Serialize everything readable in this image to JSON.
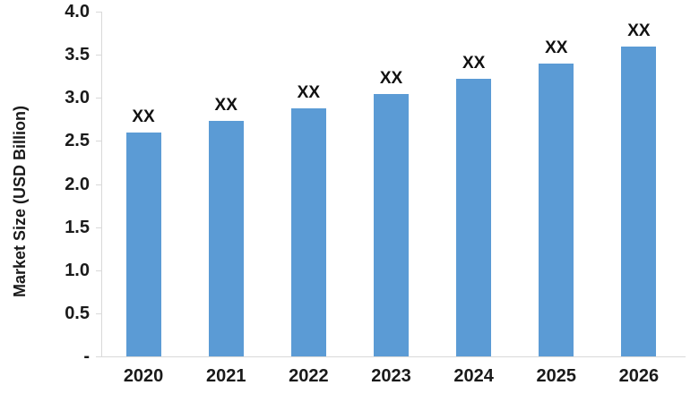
{
  "chart_data": {
    "type": "bar",
    "title": "",
    "xlabel": "",
    "ylabel": "Market Size (USD Billion)",
    "categories": [
      "2020",
      "2021",
      "2022",
      "2023",
      "2024",
      "2025",
      "2026"
    ],
    "values": [
      2.6,
      2.73,
      2.88,
      3.04,
      3.22,
      3.4,
      3.6
    ],
    "bar_labels": [
      "XX",
      "XX",
      "XX",
      "XX",
      "XX",
      "XX",
      "XX"
    ],
    "ylim": [
      0,
      4.0
    ],
    "ytick_step": 0.5,
    "ytick_labels": [
      "4.0",
      "3.5",
      "3.0",
      "2.5",
      "2.0",
      "1.5",
      "1.0",
      "0.5",
      "-"
    ],
    "grid": false,
    "legend_position": "none",
    "colors": {
      "bar": "#5b9bd5",
      "axis_line": "#d9d9d9",
      "text": "#1a1a1a",
      "background": "#ffffff"
    }
  }
}
